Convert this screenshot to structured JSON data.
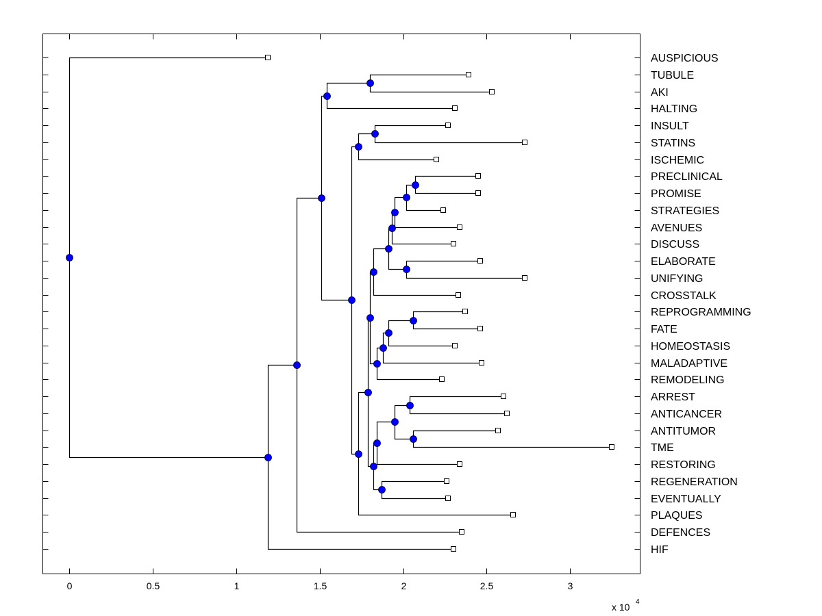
{
  "chart_data": {
    "type": "dendrogram",
    "title": "",
    "xlabel": "",
    "x_multiplier_label": "x 10",
    "x_multiplier_exponent": "4",
    "xlim": [
      -0.16,
      3.42
    ],
    "xticks": [
      0,
      0.5,
      1,
      1.5,
      2,
      2.5,
      3
    ],
    "xtick_labels": [
      "0",
      "0.5",
      "1",
      "1.5",
      "2",
      "2.5",
      "3"
    ],
    "orientation": "leaves-right",
    "grid": false,
    "colors": {
      "node_fill": "#0000ff",
      "line": "#000000",
      "leaf_fill": "#ffffff"
    },
    "leaves": [
      {
        "id": "AUSPICIOUS",
        "label": "AUSPICIOUS",
        "x": 1.19
      },
      {
        "id": "TUBULE",
        "label": "TUBULE",
        "x": 2.39
      },
      {
        "id": "AKI",
        "label": "AKI",
        "x": 2.53
      },
      {
        "id": "HALTING",
        "label": "HALTING",
        "x": 2.31
      },
      {
        "id": "INSULT",
        "label": "INSULT",
        "x": 2.27
      },
      {
        "id": "STATINS",
        "label": "STATINS",
        "x": 2.73
      },
      {
        "id": "ISCHEMIC",
        "label": "ISCHEMIC",
        "x": 2.2
      },
      {
        "id": "PRECLINICAL",
        "label": "PRECLINICAL",
        "x": 2.45
      },
      {
        "id": "PROMISE",
        "label": "PROMISE",
        "x": 2.45
      },
      {
        "id": "STRATEGIES",
        "label": "STRATEGIES",
        "x": 2.24
      },
      {
        "id": "AVENUES",
        "label": "AVENUES",
        "x": 2.34
      },
      {
        "id": "DISCUSS",
        "label": "DISCUSS",
        "x": 2.3
      },
      {
        "id": "ELABORATE",
        "label": "ELABORATE",
        "x": 2.46
      },
      {
        "id": "UNIFYING",
        "label": "UNIFYING",
        "x": 2.73
      },
      {
        "id": "CROSSTALK",
        "label": "CROSSTALK",
        "x": 2.33
      },
      {
        "id": "REPROGRAMMING",
        "label": "REPROGRAMMING",
        "x": 2.37
      },
      {
        "id": "FATE",
        "label": "FATE",
        "x": 2.46
      },
      {
        "id": "HOMEOSTASIS",
        "label": "HOMEOSTASIS",
        "x": 2.31
      },
      {
        "id": "MALADAPTIVE",
        "label": "MALADAPTIVE",
        "x": 2.47
      },
      {
        "id": "REMODELING",
        "label": "REMODELING",
        "x": 2.23
      },
      {
        "id": "ARREST",
        "label": "ARREST",
        "x": 2.6
      },
      {
        "id": "ANTICANCER",
        "label": "ANTICANCER",
        "x": 2.62
      },
      {
        "id": "ANTITUMOR",
        "label": "ANTITUMOR",
        "x": 2.57
      },
      {
        "id": "TME",
        "label": "TME",
        "x": 3.25
      },
      {
        "id": "RESTORING",
        "label": "RESTORING",
        "x": 2.34
      },
      {
        "id": "REGENERATION",
        "label": "REGENERATION",
        "x": 2.26
      },
      {
        "id": "EVENTUALLY",
        "label": "EVENTUALLY",
        "x": 2.27
      },
      {
        "id": "PLAQUES",
        "label": "PLAQUES",
        "x": 2.66
      },
      {
        "id": "DEFENCES",
        "label": "DEFENCES",
        "x": 2.35
      },
      {
        "id": "HIF",
        "label": "HIF",
        "x": 2.3
      }
    ],
    "nodes": [
      {
        "id": "root",
        "x": 0.0,
        "children": [
          "AUSPICIOUS",
          "n_a"
        ]
      },
      {
        "id": "n_a",
        "x": 1.19,
        "children": [
          "n_b",
          "HIF"
        ]
      },
      {
        "id": "n_b",
        "x": 1.36,
        "children": [
          "n_c",
          "DEFENCES"
        ]
      },
      {
        "id": "n_c",
        "x": 1.51,
        "children": [
          "n_d",
          "n_e"
        ]
      },
      {
        "id": "n_d",
        "x": 1.54,
        "children": [
          "n_tubaki",
          "HALTING"
        ]
      },
      {
        "id": "n_tubaki",
        "x": 1.8,
        "children": [
          "TUBULE",
          "AKI"
        ]
      },
      {
        "id": "n_e",
        "x": 1.69,
        "children": [
          "n_f",
          "n_g"
        ]
      },
      {
        "id": "n_f",
        "x": 1.73,
        "children": [
          "n_insult",
          "ISCHEMIC"
        ]
      },
      {
        "id": "n_insult",
        "x": 1.83,
        "children": [
          "INSULT",
          "STATINS"
        ]
      },
      {
        "id": "n_g",
        "x": 1.73,
        "children": [
          "n_h",
          "PLAQUES"
        ]
      },
      {
        "id": "n_h",
        "x": 1.79,
        "children": [
          "n_i",
          "n_j"
        ]
      },
      {
        "id": "n_i",
        "x": 1.8,
        "children": [
          "n_k",
          "n_q"
        ]
      },
      {
        "id": "n_k",
        "x": 1.82,
        "children": [
          "n_m",
          "CROSSTALK"
        ]
      },
      {
        "id": "n_m",
        "x": 1.91,
        "children": [
          "n_n",
          "n_elab"
        ]
      },
      {
        "id": "n_n",
        "x": 1.93,
        "children": [
          "n_o",
          "DISCUSS"
        ]
      },
      {
        "id": "n_o",
        "x": 1.95,
        "children": [
          "n_p",
          "AVENUES"
        ]
      },
      {
        "id": "n_p",
        "x": 2.02,
        "children": [
          "n_pre",
          "STRATEGIES"
        ]
      },
      {
        "id": "n_pre",
        "x": 2.07,
        "children": [
          "PRECLINICAL",
          "PROMISE"
        ]
      },
      {
        "id": "n_elab",
        "x": 2.02,
        "children": [
          "ELABORATE",
          "UNIFYING"
        ]
      },
      {
        "id": "n_q",
        "x": 1.84,
        "children": [
          "n_hm",
          "REMODELING"
        ]
      },
      {
        "id": "n_hm",
        "x": 1.88,
        "children": [
          "n_fh",
          "MALADAPTIVE"
        ]
      },
      {
        "id": "n_fh",
        "x": 1.91,
        "children": [
          "n_fate",
          "HOMEOSTASIS"
        ]
      },
      {
        "id": "n_fate",
        "x": 2.06,
        "children": [
          "REPROGRAMMING",
          "FATE"
        ]
      },
      {
        "id": "n_j",
        "x": 1.82,
        "children": [
          "n_r",
          "n_s"
        ]
      },
      {
        "id": "n_r",
        "x": 1.84,
        "children": [
          "n_t",
          "RESTORING"
        ]
      },
      {
        "id": "n_t",
        "x": 1.95,
        "children": [
          "n_u",
          "n_v"
        ]
      },
      {
        "id": "n_u",
        "x": 2.04,
        "children": [
          "ARREST",
          "ANTICANCER"
        ]
      },
      {
        "id": "n_v",
        "x": 2.06,
        "children": [
          "ANTITUMOR",
          "TME"
        ]
      },
      {
        "id": "n_s",
        "x": 1.87,
        "children": [
          "REGENERATION",
          "EVENTUALLY"
        ]
      }
    ]
  }
}
